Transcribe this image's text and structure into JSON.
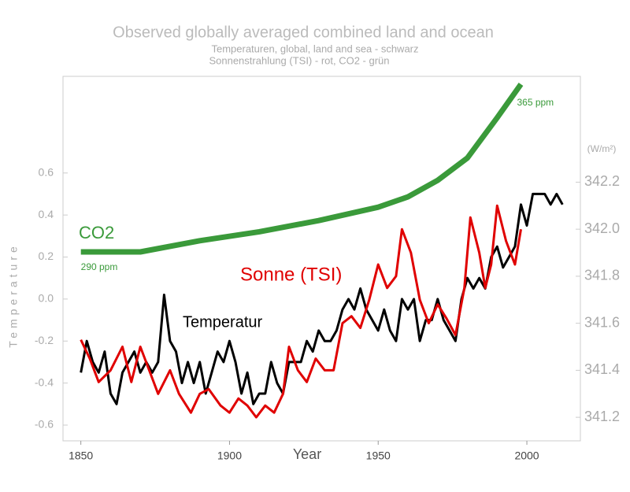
{
  "chart_data": {
    "type": "line",
    "title": "Observed globally averaged combined land and ocean",
    "subtitle": [
      "Temperaturen, global, land and sea - schwarz",
      "Sonnenstrahlung (TSI) - rot, CO2 - grün"
    ],
    "x_label": "Year",
    "y_label": "Temperature",
    "y2_label": "(W/m²)",
    "xlim": [
      1844,
      2018
    ],
    "xticks": [
      1850,
      1900,
      1950,
      2000
    ],
    "ylim": [
      -0.675,
      1.06
    ],
    "yticks": [
      -0.6,
      -0.4,
      -0.2,
      {
        "value": 0,
        "label": "0.0"
      },
      0.2,
      0.4,
      0.6
    ],
    "y2lim": [
      341.1,
      342.65
    ],
    "y2ticks": [
      341.2,
      341.4,
      341.6,
      341.8,
      {
        "value": 342,
        "label": "342.0"
      },
      342.2
    ],
    "series": [
      {
        "name": "Temperatur",
        "color": "#000000",
        "axis": "y",
        "x": [
          1850,
          1852,
          1854,
          1856,
          1858,
          1860,
          1862,
          1864,
          1866,
          1868,
          1870,
          1872,
          1874,
          1876,
          1878,
          1880,
          1882,
          1884,
          1886,
          1888,
          1890,
          1892,
          1894,
          1896,
          1898,
          1900,
          1902,
          1904,
          1906,
          1908,
          1910,
          1912,
          1914,
          1916,
          1918,
          1920,
          1922,
          1924,
          1926,
          1928,
          1930,
          1932,
          1934,
          1936,
          1938,
          1940,
          1942,
          1944,
          1946,
          1948,
          1950,
          1952,
          1954,
          1956,
          1958,
          1960,
          1962,
          1964,
          1966,
          1968,
          1970,
          1972,
          1974,
          1976,
          1978,
          1980,
          1982,
          1984,
          1986,
          1988,
          1990,
          1992,
          1994,
          1996,
          1998,
          2000,
          2002,
          2004,
          2006,
          2008,
          2010,
          2012
        ],
        "values": [
          -0.35,
          -0.2,
          -0.3,
          -0.35,
          -0.25,
          -0.45,
          -0.5,
          -0.35,
          -0.3,
          -0.25,
          -0.35,
          -0.3,
          -0.35,
          -0.3,
          0.02,
          -0.2,
          -0.25,
          -0.4,
          -0.3,
          -0.4,
          -0.3,
          -0.45,
          -0.35,
          -0.25,
          -0.3,
          -0.2,
          -0.3,
          -0.45,
          -0.35,
          -0.5,
          -0.45,
          -0.45,
          -0.3,
          -0.4,
          -0.45,
          -0.3,
          -0.3,
          -0.3,
          -0.2,
          -0.25,
          -0.15,
          -0.2,
          -0.2,
          -0.15,
          -0.05,
          0,
          -0.05,
          0.05,
          -0.05,
          -0.1,
          -0.15,
          -0.05,
          -0.15,
          -0.2,
          0,
          -0.05,
          0,
          -0.2,
          -0.1,
          -0.1,
          0,
          -0.1,
          -0.15,
          -0.2,
          0,
          0.1,
          0.05,
          0.1,
          0.05,
          0.2,
          0.25,
          0.15,
          0.2,
          0.25,
          0.45,
          0.35,
          0.5,
          0.5,
          0.5,
          0.45,
          0.5,
          0.45
        ]
      },
      {
        "name": "Sonne (TSI)",
        "color": "#e00000",
        "axis": "y2",
        "x": [
          1850,
          1853,
          1856,
          1860,
          1864,
          1867,
          1870,
          1873,
          1876,
          1880,
          1883,
          1887,
          1890,
          1893,
          1897,
          1900,
          1903,
          1906,
          1909,
          1912,
          1915,
          1918,
          1920,
          1923,
          1926,
          1929,
          1932,
          1935,
          1938,
          1941,
          1944,
          1947,
          1950,
          1953,
          1956,
          1958,
          1961,
          1964,
          1967,
          1970,
          1973,
          1976,
          1979,
          1981,
          1984,
          1986,
          1988,
          1990,
          1993,
          1996,
          1998
        ],
        "values": [
          341.53,
          341.45,
          341.35,
          341.4,
          341.5,
          341.35,
          341.5,
          341.4,
          341.3,
          341.4,
          341.3,
          341.22,
          341.3,
          341.32,
          341.25,
          341.22,
          341.28,
          341.25,
          341.2,
          341.25,
          341.22,
          341.3,
          341.5,
          341.4,
          341.35,
          341.45,
          341.4,
          341.4,
          341.6,
          341.63,
          341.58,
          341.7,
          341.85,
          341.75,
          341.8,
          342.0,
          341.9,
          341.7,
          341.6,
          341.68,
          341.62,
          341.55,
          341.75,
          342.05,
          341.9,
          341.75,
          341.85,
          342.1,
          341.95,
          341.85,
          342.0
        ]
      },
      {
        "name": "CO2",
        "color": "#3a9a3a",
        "axis": "ppm",
        "x": [
          1850,
          1870,
          1890,
          1910,
          1930,
          1950,
          1960,
          1970,
          1980,
          1990,
          1998
        ],
        "values": [
          290,
          290,
          295,
          299,
          304,
          310,
          314.6,
          322,
          332,
          350,
          365
        ],
        "value_labels": [
          "290 ppm",
          null,
          null,
          null,
          null,
          null,
          null,
          null,
          null,
          null,
          "365 ppm"
        ]
      }
    ]
  }
}
